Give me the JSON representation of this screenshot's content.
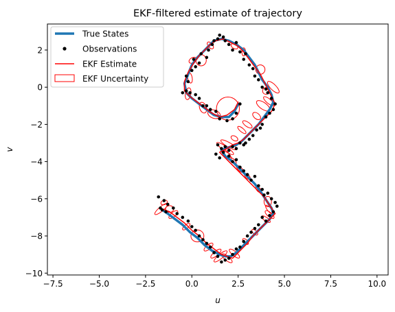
{
  "chart_data": {
    "type": "line",
    "title": "EKF-filtered estimate of trajectory",
    "xlabel": "u",
    "ylabel": "v",
    "xlim": [
      -7.8,
      10.6
    ],
    "ylim": [
      -10.1,
      3.4
    ],
    "xticks": [
      -7.5,
      -5.0,
      -2.5,
      0.0,
      2.5,
      5.0,
      7.5,
      10.0
    ],
    "xtick_labels": [
      "−7.5",
      "−5.0",
      "−2.5",
      "0.0",
      "2.5",
      "5.0",
      "7.5",
      "10.0"
    ],
    "yticks": [
      2,
      0,
      -2,
      -4,
      -6,
      -8,
      -10
    ],
    "ytick_labels": [
      "2",
      "0",
      "−2",
      "−4",
      "−6",
      "−8",
      "−10"
    ],
    "grid": false,
    "legend": {
      "position": "top-left",
      "entries": [
        {
          "label": "True States",
          "style": "thick-line",
          "color": "#1f77b4"
        },
        {
          "label": "Observations",
          "style": "dot",
          "color": "#000000"
        },
        {
          "label": "EKF Estimate",
          "style": "line",
          "color": "#ff0000"
        },
        {
          "label": "EKF Uncertainty",
          "style": "ellipse",
          "color": "#ff0000"
        }
      ]
    },
    "series": [
      {
        "name": "True States",
        "color": "#1f77b4",
        "x": [
          2.5,
          2.3,
          2.0,
          1.6,
          1.2,
          0.8,
          0.4,
          0.0,
          -0.3,
          -0.4,
          -0.2,
          0.0,
          0.3,
          0.6,
          0.9,
          1.2,
          1.6,
          2.0,
          2.4,
          2.8,
          3.1,
          3.4,
          3.6,
          3.8,
          4.1,
          4.3,
          4.4,
          4.2,
          3.9,
          3.6,
          3.3,
          3.0,
          2.7,
          2.4,
          2.1,
          1.8,
          1.6,
          1.8,
          2.2,
          2.6,
          3.0,
          3.4,
          3.7,
          3.9,
          4.1,
          4.3,
          4.4,
          4.2,
          3.9,
          3.6,
          3.3,
          3.0,
          2.7,
          2.4,
          2.1,
          1.8,
          1.5,
          1.1,
          0.7,
          0.3,
          -0.1,
          -0.5,
          -0.9,
          -1.3,
          -1.6
        ],
        "y": [
          -0.9,
          -1.3,
          -1.6,
          -1.6,
          -1.5,
          -1.2,
          -0.9,
          -0.6,
          -0.3,
          0.2,
          0.7,
          1.2,
          1.6,
          1.9,
          2.2,
          2.5,
          2.6,
          2.5,
          2.3,
          2.0,
          1.6,
          1.2,
          0.8,
          0.4,
          0.0,
          -0.4,
          -0.8,
          -1.2,
          -1.6,
          -2.0,
          -2.3,
          -2.6,
          -2.9,
          -3.1,
          -3.2,
          -3.3,
          -3.4,
          -3.7,
          -4.0,
          -4.4,
          -4.8,
          -5.2,
          -5.6,
          -5.9,
          -6.2,
          -6.5,
          -6.8,
          -7.1,
          -7.4,
          -7.7,
          -8.0,
          -8.3,
          -8.6,
          -8.9,
          -9.1,
          -9.1,
          -9.0,
          -8.8,
          -8.5,
          -8.1,
          -7.8,
          -7.4,
          -7.1,
          -6.8,
          -6.6
        ]
      },
      {
        "name": "EKF Estimate",
        "color": "#ff0000",
        "x": [
          2.5,
          2.3,
          1.9,
          1.5,
          1.1,
          0.7,
          0.3,
          -0.1,
          -0.4,
          -0.4,
          -0.2,
          0.1,
          0.4,
          0.7,
          1.0,
          1.3,
          1.7,
          2.1,
          2.5,
          2.8,
          3.1,
          3.4,
          3.7,
          3.9,
          4.1,
          4.3,
          4.5,
          4.3,
          3.9,
          3.6,
          3.3,
          3.0,
          2.8,
          2.5,
          2.2,
          1.9,
          1.5,
          1.8,
          2.1,
          2.5,
          2.9,
          3.3,
          3.6,
          3.9,
          4.1,
          4.3,
          4.5,
          4.2,
          3.9,
          3.6,
          3.3,
          3.0,
          2.7,
          2.4,
          2.2,
          1.9,
          1.6,
          1.2,
          0.8,
          0.4,
          0.0,
          -0.4,
          -0.8,
          -1.2,
          -1.7
        ],
        "y": [
          -0.8,
          -1.2,
          -1.5,
          -1.6,
          -1.4,
          -1.1,
          -0.8,
          -0.5,
          -0.2,
          0.3,
          0.8,
          1.3,
          1.7,
          2.0,
          2.3,
          2.5,
          2.6,
          2.4,
          2.2,
          1.9,
          1.5,
          1.1,
          0.7,
          0.3,
          -0.1,
          -0.5,
          -0.9,
          -1.3,
          -1.7,
          -2.0,
          -2.3,
          -2.6,
          -2.8,
          -3.0,
          -3.1,
          -3.3,
          -3.5,
          -3.8,
          -4.1,
          -4.5,
          -4.9,
          -5.3,
          -5.6,
          -5.9,
          -6.2,
          -6.5,
          -6.8,
          -7.1,
          -7.4,
          -7.7,
          -8.0,
          -8.4,
          -8.7,
          -9.0,
          -9.2,
          -9.1,
          -9.0,
          -8.7,
          -8.4,
          -8.0,
          -7.7,
          -7.3,
          -7.0,
          -6.7,
          -6.5
        ]
      }
    ],
    "observations": {
      "name": "Observations",
      "color": "#000000",
      "x": [
        2.6,
        2.4,
        2.2,
        1.9,
        1.5,
        1.3,
        1.0,
        0.8,
        0.6,
        0.4,
        0.2,
        -0.1,
        -0.3,
        -0.5,
        -0.2,
        -0.3,
        0.0,
        0.2,
        0.1,
        0.4,
        0.5,
        0.8,
        0.9,
        1.1,
        1.2,
        1.4,
        1.5,
        1.7,
        1.8,
        2.0,
        2.2,
        2.4,
        2.6,
        2.8,
        2.9,
        3.1,
        3.3,
        3.4,
        3.6,
        3.8,
        4.0,
        4.1,
        4.3,
        4.5,
        4.4,
        4.2,
        4.0,
        3.8,
        3.7,
        3.5,
        3.3,
        3.1,
        2.9,
        2.8,
        2.6,
        2.4,
        2.2,
        2.0,
        1.8,
        1.6,
        1.4,
        1.3,
        1.5,
        1.7,
        2.0,
        2.2,
        2.4,
        2.6,
        2.8,
        3.0,
        3.2,
        3.4,
        3.6,
        3.8,
        3.9,
        4.1,
        4.3,
        4.5,
        4.6,
        4.4,
        4.2,
        4.0,
        3.8,
        3.6,
        3.4,
        3.2,
        3.0,
        2.8,
        2.6,
        2.4,
        2.2,
        2.0,
        1.8,
        1.6,
        1.4,
        1.2,
        1.0,
        0.8,
        0.6,
        0.4,
        0.2,
        0.0,
        -0.2,
        -0.5,
        -0.8,
        -1.0,
        -1.3,
        -1.5,
        -1.7,
        -1.4,
        -1.6,
        -1.8
      ],
      "y": [
        -0.9,
        -1.4,
        -1.7,
        -1.8,
        -1.7,
        -1.3,
        -1.2,
        -1.0,
        -1.0,
        -0.6,
        -0.4,
        -0.3,
        -0.2,
        -0.3,
        0.3,
        0.6,
        0.9,
        1.1,
        1.5,
        1.3,
        1.8,
        1.6,
        2.0,
        2.3,
        2.5,
        2.6,
        2.8,
        2.7,
        2.5,
        2.3,
        2.0,
        2.4,
        1.9,
        1.5,
        1.8,
        1.2,
        1.0,
        0.6,
        0.4,
        0.0,
        -0.1,
        -0.3,
        -0.6,
        -0.9,
        -1.2,
        -1.4,
        -1.6,
        -2.0,
        -2.2,
        -2.3,
        -2.6,
        -2.8,
        -3.0,
        -3.1,
        -3.0,
        -3.3,
        -3.2,
        -3.4,
        -3.2,
        -3.3,
        -3.1,
        -3.6,
        -3.8,
        -3.5,
        -3.7,
        -4.0,
        -3.9,
        -4.3,
        -4.5,
        -4.7,
        -5.0,
        -4.8,
        -5.3,
        -5.5,
        -5.8,
        -5.7,
        -6.0,
        -6.2,
        -6.4,
        -6.7,
        -6.9,
        -7.2,
        -7.0,
        -7.4,
        -7.6,
        -7.8,
        -8.0,
        -8.3,
        -8.6,
        -8.7,
        -9.0,
        -9.2,
        -9.3,
        -9.4,
        -9.1,
        -8.9,
        -8.6,
        -8.4,
        -8.2,
        -8.0,
        -7.7,
        -7.5,
        -7.2,
        -7.0,
        -6.8,
        -6.5,
        -6.3,
        -6.1,
        -6.5,
        -6.7,
        -6.6,
        -5.9
      ]
    },
    "uncertainty": {
      "name": "EKF Uncertainty",
      "color": "#ff0000",
      "ellipses": [
        {
          "cx": 1.95,
          "cy": -1.15,
          "rx": 0.62,
          "ry": 0.62,
          "angle": 0
        },
        {
          "cx": 1.2,
          "cy": -1.45,
          "rx": 0.35,
          "ry": 0.22,
          "angle": -20
        },
        {
          "cx": 0.6,
          "cy": -1.1,
          "rx": 0.18,
          "ry": 0.3,
          "angle": 20
        },
        {
          "cx": -0.2,
          "cy": -0.35,
          "rx": 0.15,
          "ry": 0.32,
          "angle": -10
        },
        {
          "cx": -0.1,
          "cy": 0.5,
          "rx": 0.12,
          "ry": 0.28,
          "angle": 10
        },
        {
          "cx": 0.05,
          "cy": 1.45,
          "rx": 0.22,
          "ry": 0.14,
          "angle": 30
        },
        {
          "cx": 0.5,
          "cy": 1.45,
          "rx": 0.28,
          "ry": 0.3,
          "angle": 0
        },
        {
          "cx": 1.0,
          "cy": 2.25,
          "rx": 0.12,
          "ry": 0.22,
          "angle": 40
        },
        {
          "cx": 2.3,
          "cy": 2.2,
          "rx": 0.2,
          "ry": 0.12,
          "angle": -30
        },
        {
          "cx": 2.8,
          "cy": 1.9,
          "rx": 0.1,
          "ry": 0.22,
          "angle": 0
        },
        {
          "cx": 3.7,
          "cy": 0.95,
          "rx": 0.25,
          "ry": 0.25,
          "angle": 0
        },
        {
          "cx": 4.0,
          "cy": -0.2,
          "rx": 0.18,
          "ry": 0.18,
          "angle": 0
        },
        {
          "cx": 4.4,
          "cy": 0.0,
          "rx": 0.42,
          "ry": 0.15,
          "angle": -45
        },
        {
          "cx": 4.15,
          "cy": -0.75,
          "rx": 0.35,
          "ry": 0.12,
          "angle": -40
        },
        {
          "cx": 3.85,
          "cy": -1.0,
          "rx": 0.42,
          "ry": 0.18,
          "angle": -35
        },
        {
          "cx": 3.5,
          "cy": -1.55,
          "rx": 0.25,
          "ry": 0.15,
          "angle": -40
        },
        {
          "cx": 3.0,
          "cy": -2.0,
          "rx": 0.3,
          "ry": 0.12,
          "angle": -35
        },
        {
          "cx": 2.7,
          "cy": -2.3,
          "rx": 0.28,
          "ry": 0.1,
          "angle": -40
        },
        {
          "cx": 2.3,
          "cy": -2.75,
          "rx": 0.2,
          "ry": 0.12,
          "angle": -30
        },
        {
          "cx": 2.0,
          "cy": -3.1,
          "rx": 0.5,
          "ry": 0.12,
          "angle": -30
        },
        {
          "cx": 1.8,
          "cy": -3.3,
          "rx": 0.55,
          "ry": 0.12,
          "angle": -35
        },
        {
          "cx": 1.9,
          "cy": -3.6,
          "rx": 0.35,
          "ry": 0.1,
          "angle": -50
        },
        {
          "cx": 2.2,
          "cy": -3.95,
          "rx": 0.25,
          "ry": 0.1,
          "angle": -40
        },
        {
          "cx": 2.6,
          "cy": -4.4,
          "rx": 0.25,
          "ry": 0.1,
          "angle": -45
        },
        {
          "cx": 3.0,
          "cy": -4.8,
          "rx": 0.2,
          "ry": 0.1,
          "angle": -45
        },
        {
          "cx": 3.6,
          "cy": -5.5,
          "rx": 0.2,
          "ry": 0.1,
          "angle": -50
        },
        {
          "cx": 4.1,
          "cy": -6.15,
          "rx": 0.2,
          "ry": 0.28,
          "angle": 0
        },
        {
          "cx": 4.2,
          "cy": -6.6,
          "rx": 0.32,
          "ry": 0.1,
          "angle": -50
        },
        {
          "cx": 4.2,
          "cy": -6.85,
          "rx": 0.3,
          "ry": 0.12,
          "angle": -40
        },
        {
          "cx": 4.0,
          "cy": -7.1,
          "rx": 0.28,
          "ry": 0.1,
          "angle": -35
        },
        {
          "cx": 3.4,
          "cy": -7.8,
          "rx": 0.2,
          "ry": 0.1,
          "angle": -45
        },
        {
          "cx": 2.9,
          "cy": -8.3,
          "rx": 0.2,
          "ry": 0.1,
          "angle": -45
        },
        {
          "cx": 2.3,
          "cy": -8.95,
          "rx": 0.35,
          "ry": 0.12,
          "angle": -40
        },
        {
          "cx": 1.9,
          "cy": -9.2,
          "rx": 0.35,
          "ry": 0.12,
          "angle": -40
        },
        {
          "cx": 1.55,
          "cy": -9.1,
          "rx": 0.45,
          "ry": 0.12,
          "angle": 40
        },
        {
          "cx": 1.3,
          "cy": -8.95,
          "rx": 0.35,
          "ry": 0.12,
          "angle": 40
        },
        {
          "cx": 0.9,
          "cy": -8.6,
          "rx": 0.3,
          "ry": 0.12,
          "angle": 40
        },
        {
          "cx": 0.3,
          "cy": -8.0,
          "rx": 0.35,
          "ry": 0.32,
          "angle": 0
        },
        {
          "cx": -0.3,
          "cy": -7.5,
          "rx": 0.25,
          "ry": 0.1,
          "angle": 40
        },
        {
          "cx": -1.0,
          "cy": -6.85,
          "rx": 0.3,
          "ry": 0.12,
          "angle": 40
        },
        {
          "cx": -1.2,
          "cy": -6.55,
          "rx": 0.22,
          "ry": 0.18,
          "angle": 0
        },
        {
          "cx": -1.65,
          "cy": -6.55,
          "rx": 0.45,
          "ry": 0.12,
          "angle": 40
        },
        {
          "cx": -1.5,
          "cy": -6.2,
          "rx": 0.18,
          "ry": 0.12,
          "angle": 20
        }
      ]
    }
  }
}
